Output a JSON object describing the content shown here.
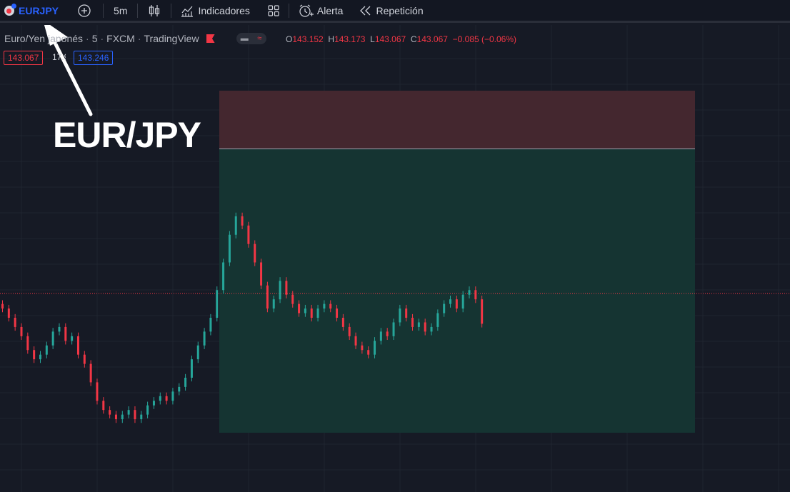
{
  "toolbar": {
    "symbol": "EURJPY",
    "add_symbol_icon": "plus-circle-icon",
    "interval": "5m",
    "chart_type_icon": "candles-icon",
    "indicators_label": "Indicadores",
    "layout_icon": "grid-icon",
    "alert_label": "Alerta",
    "replay_label": "Repetición"
  },
  "legend": {
    "name": "Euro/Yen japonés",
    "interval": "5",
    "source": "FXCM",
    "platform": "TradingView",
    "separator": "·",
    "ohlc": {
      "o_label": "O",
      "o": "143.152",
      "h_label": "H",
      "h": "143.173",
      "l_label": "L",
      "l": "143.067",
      "c_label": "C",
      "c": "143.067",
      "change": "−0.085 (−0.06%)"
    }
  },
  "price_boxes": {
    "bid": "143.067",
    "spread": "17.9",
    "ask": "143.246"
  },
  "annotation": {
    "text": "EUR/JPY",
    "arrow_icon": "arrow-icon"
  },
  "colors": {
    "up": "#26a69a",
    "down": "#f23645",
    "background": "#161a25",
    "accent": "#2962ff",
    "profit_zone": "#153432",
    "loss_zone": "#44272f"
  },
  "chart_data": {
    "type": "candlestick",
    "interval": "5m",
    "candles_close_sequence": [
      143.1,
      143.08,
      143.06,
      143.04,
      143.01,
      142.99,
      143.0,
      143.02,
      143.05,
      143.06,
      143.03,
      143.04,
      143.0,
      142.98,
      142.94,
      142.9,
      142.88,
      142.87,
      142.86,
      142.87,
      142.88,
      142.86,
      142.87,
      142.89,
      142.9,
      142.91,
      142.9,
      142.92,
      142.93,
      142.95,
      142.99,
      143.02,
      143.05,
      143.08,
      143.14,
      143.2,
      143.26,
      143.3,
      143.28,
      143.24,
      143.2,
      143.15,
      143.1,
      143.12,
      143.16,
      143.13,
      143.11,
      143.09,
      143.1,
      143.08,
      143.1,
      143.11,
      143.1,
      143.08,
      143.06,
      143.04,
      143.02,
      143.01,
      143.0,
      143.03,
      143.05,
      143.04,
      143.07,
      143.1,
      143.08,
      143.06,
      143.07,
      143.05,
      143.06,
      143.09,
      143.11,
      143.12,
      143.1,
      143.13,
      143.14,
      143.12,
      143.067
    ],
    "position_tool": {
      "type": "short",
      "zones": [
        "stop",
        "target"
      ]
    }
  }
}
